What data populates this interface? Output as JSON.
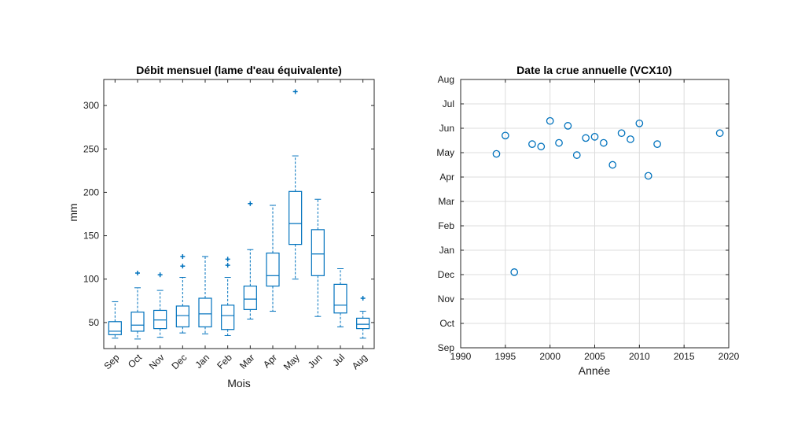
{
  "colors": {
    "series": "#0072BD",
    "axis": "#262626",
    "grid": "#dcdcdc"
  },
  "chart_data": [
    {
      "type": "box",
      "title": "Débit mensuel (lame d'eau équivalente)",
      "xlabel": "Mois",
      "ylabel": "mm",
      "ylim": [
        20,
        330
      ],
      "yticks": [
        50,
        100,
        150,
        200,
        250,
        300
      ],
      "grid": false,
      "categories": [
        "Sep",
        "Oct",
        "Nov",
        "Dec",
        "Jan",
        "Feb",
        "Mar",
        "Apr",
        "May",
        "Jun",
        "Jul",
        "Aug"
      ],
      "boxes": [
        {
          "wlo": 32,
          "q1": 36,
          "median": 40,
          "q3": 51,
          "whi": 74,
          "outliers": []
        },
        {
          "wlo": 31,
          "q1": 40,
          "median": 47,
          "q3": 62,
          "whi": 90,
          "outliers": [
            107
          ]
        },
        {
          "wlo": 33,
          "q1": 43,
          "median": 53,
          "q3": 64,
          "whi": 87,
          "outliers": [
            105
          ]
        },
        {
          "wlo": 38,
          "q1": 45,
          "median": 58,
          "q3": 69,
          "whi": 102,
          "outliers": [
            115,
            126
          ]
        },
        {
          "wlo": 37,
          "q1": 45,
          "median": 60,
          "q3": 78,
          "whi": 126,
          "outliers": []
        },
        {
          "wlo": 35,
          "q1": 42,
          "median": 58,
          "q3": 70,
          "whi": 102,
          "outliers": [
            116,
            123
          ]
        },
        {
          "wlo": 54,
          "q1": 65,
          "median": 77,
          "q3": 92,
          "whi": 134,
          "outliers": [
            187
          ]
        },
        {
          "wlo": 63,
          "q1": 92,
          "median": 104,
          "q3": 130,
          "whi": 185,
          "outliers": []
        },
        {
          "wlo": 100,
          "q1": 140,
          "median": 164,
          "q3": 201,
          "whi": 242,
          "outliers": [
            316
          ]
        },
        {
          "wlo": 57,
          "q1": 104,
          "median": 129,
          "q3": 157,
          "whi": 192,
          "outliers": []
        },
        {
          "wlo": 45,
          "q1": 61,
          "median": 70,
          "q3": 94,
          "whi": 112,
          "outliers": []
        },
        {
          "wlo": 32,
          "q1": 43,
          "median": 48,
          "q3": 55,
          "whi": 63,
          "outliers": [
            78
          ]
        }
      ]
    },
    {
      "type": "scatter",
      "title": "Date la crue annuelle (VCX10)",
      "xlabel": "Année",
      "ylabel": "",
      "xlim": [
        1990,
        2020
      ],
      "xticks": [
        1990,
        1995,
        2000,
        2005,
        2010,
        2015,
        2020
      ],
      "ylim": [
        0,
        11
      ],
      "ytick_labels": [
        "Sep",
        "Oct",
        "Nov",
        "Dec",
        "Jan",
        "Feb",
        "Mar",
        "Apr",
        "May",
        "Jun",
        "Jul",
        "Aug"
      ],
      "grid": true,
      "x": [
        1994,
        1995,
        1996,
        1998,
        1999,
        2000,
        2001,
        2002,
        2003,
        2004,
        2005,
        2006,
        2007,
        2008,
        2009,
        2010,
        2011,
        2012,
        2019
      ],
      "y": [
        7.95,
        8.7,
        3.1,
        8.35,
        8.25,
        9.3,
        8.4,
        9.1,
        7.9,
        8.6,
        8.65,
        8.4,
        7.5,
        8.8,
        8.55,
        9.2,
        7.05,
        8.35,
        8.8
      ]
    }
  ]
}
